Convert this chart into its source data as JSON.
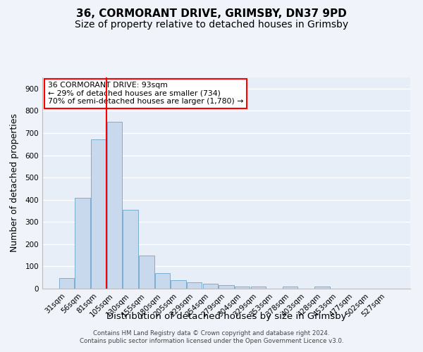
{
  "title_line1": "36, CORMORANT DRIVE, GRIMSBY, DN37 9PD",
  "title_line2": "Size of property relative to detached houses in Grimsby",
  "xlabel": "Distribution of detached houses by size in Grimsby",
  "ylabel": "Number of detached properties",
  "bar_color": "#c8d9ee",
  "bar_edge_color": "#7aaed4",
  "background_color": "#e8eef8",
  "grid_color": "#ffffff",
  "categories": [
    "31sqm",
    "56sqm",
    "81sqm",
    "105sqm",
    "130sqm",
    "155sqm",
    "180sqm",
    "205sqm",
    "229sqm",
    "254sqm",
    "279sqm",
    "304sqm",
    "329sqm",
    "353sqm",
    "378sqm",
    "403sqm",
    "428sqm",
    "453sqm",
    "477sqm",
    "502sqm",
    "527sqm"
  ],
  "values": [
    48,
    410,
    670,
    750,
    355,
    148,
    70,
    38,
    30,
    22,
    15,
    10,
    8,
    0,
    8,
    0,
    10,
    0,
    0,
    0,
    0
  ],
  "ylim": [
    0,
    950
  ],
  "yticks": [
    0,
    100,
    200,
    300,
    400,
    500,
    600,
    700,
    800,
    900
  ],
  "red_line_x": 2.5,
  "annotation_box_text": [
    "36 CORMORANT DRIVE: 93sqm",
    "← 29% of detached houses are smaller (734)",
    "70% of semi-detached houses are larger (1,780) →"
  ],
  "footer_line1": "Contains HM Land Registry data © Crown copyright and database right 2024.",
  "footer_line2": "Contains public sector information licensed under the Open Government Licence v3.0.",
  "title_fontsize": 11,
  "subtitle_fontsize": 10,
  "tick_fontsize": 7.5,
  "ylabel_fontsize": 9,
  "xlabel_fontsize": 9.5
}
